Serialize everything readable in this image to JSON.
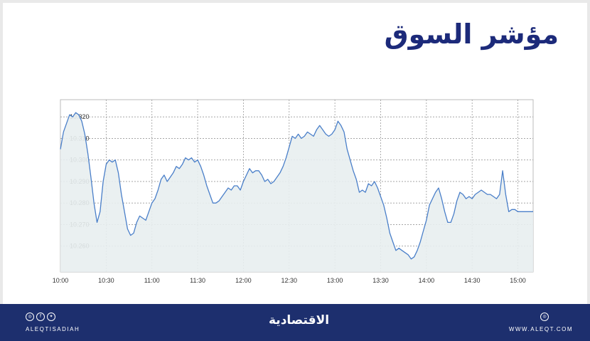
{
  "header": {
    "title": "مؤشر السوق"
  },
  "chart_data": {
    "type": "area",
    "title": "مؤشر السوق",
    "xlabel": "",
    "ylabel": "",
    "x_ticks": [
      "10:00",
      "10:30",
      "11:00",
      "11:30",
      "12:00",
      "12:30",
      "13:00",
      "13:30",
      "14:00",
      "14:30",
      "15:00"
    ],
    "y_ticks": [
      "10.260",
      "10.270",
      "10.280",
      "10.290",
      "10.300",
      "10.310",
      "10.320"
    ],
    "xlim": [
      "10:00",
      "15:10"
    ],
    "ylim": [
      10.248,
      10.328
    ],
    "grid": true,
    "line_color": "#4a7fc9",
    "fill_color": "#e8eef0",
    "series": [
      {
        "x": [
          "10:00",
          "10:02",
          "10:04",
          "10:06",
          "10:08",
          "10:10",
          "10:12",
          "10:14",
          "10:16",
          "10:18",
          "10:20",
          "10:22",
          "10:24",
          "10:26",
          "10:28",
          "10:30",
          "10:32",
          "10:34",
          "10:36",
          "10:38",
          "10:40",
          "10:42",
          "10:44",
          "10:46",
          "10:48",
          "10:50",
          "10:52",
          "10:54",
          "10:56",
          "10:58",
          "11:00",
          "11:02",
          "11:04",
          "11:06",
          "11:08",
          "11:10",
          "11:12",
          "11:14",
          "11:16",
          "11:18",
          "11:20",
          "11:22",
          "11:24",
          "11:26",
          "11:28",
          "11:30",
          "11:32",
          "11:34",
          "11:36",
          "11:38",
          "11:40",
          "11:42",
          "11:44",
          "11:46",
          "11:48",
          "11:50",
          "11:52",
          "11:54",
          "11:56",
          "11:58",
          "12:00",
          "12:02",
          "12:04",
          "12:06",
          "12:08",
          "12:10",
          "12:12",
          "12:14",
          "12:16",
          "12:18",
          "12:20",
          "12:22",
          "12:24",
          "12:26",
          "12:28",
          "12:30",
          "12:32",
          "12:34",
          "12:36",
          "12:38",
          "12:40",
          "12:42",
          "12:44",
          "12:46",
          "12:48",
          "12:50",
          "12:52",
          "12:54",
          "12:56",
          "12:58",
          "13:00",
          "13:02",
          "13:04",
          "13:06",
          "13:08",
          "13:10",
          "13:12",
          "13:14",
          "13:16",
          "13:18",
          "13:20",
          "13:22",
          "13:24",
          "13:26",
          "13:28",
          "13:30",
          "13:32",
          "13:34",
          "13:36",
          "13:38",
          "13:40",
          "13:42",
          "13:44",
          "13:46",
          "13:48",
          "13:50",
          "13:52",
          "13:54",
          "13:56",
          "13:58",
          "14:00",
          "14:02",
          "14:04",
          "14:06",
          "14:08",
          "14:10",
          "14:12",
          "14:14",
          "14:16",
          "14:18",
          "14:20",
          "14:22",
          "14:24",
          "14:26",
          "14:28",
          "14:30",
          "14:32",
          "14:34",
          "14:36",
          "14:38",
          "14:40",
          "14:42",
          "14:44",
          "14:46",
          "14:48",
          "14:50",
          "14:52",
          "14:54",
          "14:56",
          "14:58",
          "15:00",
          "15:02",
          "15:04",
          "15:06",
          "15:08",
          "15:10"
        ],
        "values": [
          10.305,
          10.313,
          10.317,
          10.321,
          10.32,
          10.322,
          10.321,
          10.318,
          10.312,
          10.303,
          10.292,
          10.28,
          10.271,
          10.276,
          10.29,
          10.298,
          10.3,
          10.299,
          10.3,
          10.294,
          10.284,
          10.276,
          10.268,
          10.265,
          10.266,
          10.271,
          10.274,
          10.273,
          10.272,
          10.276,
          10.28,
          10.282,
          10.286,
          10.291,
          10.293,
          10.29,
          10.292,
          10.294,
          10.297,
          10.296,
          10.298,
          10.301,
          10.3,
          10.301,
          10.299,
          10.3,
          10.297,
          10.293,
          10.288,
          10.284,
          10.28,
          10.28,
          10.281,
          10.283,
          10.285,
          10.287,
          10.286,
          10.288,
          10.288,
          10.286,
          10.29,
          10.293,
          10.296,
          10.294,
          10.295,
          10.295,
          10.293,
          10.29,
          10.291,
          10.289,
          10.29,
          10.292,
          10.294,
          10.297,
          10.301,
          10.306,
          10.311,
          10.31,
          10.312,
          10.31,
          10.311,
          10.313,
          10.312,
          10.311,
          10.314,
          10.316,
          10.314,
          10.312,
          10.311,
          10.312,
          10.314,
          10.318,
          10.316,
          10.313,
          10.305,
          10.3,
          10.295,
          10.291,
          10.285,
          10.286,
          10.285,
          10.289,
          10.288,
          10.29,
          10.287,
          10.283,
          10.279,
          10.273,
          10.266,
          10.262,
          10.258,
          10.259,
          10.258,
          10.257,
          10.256,
          10.254,
          10.255,
          10.258,
          10.262,
          10.267,
          10.272,
          10.279,
          10.282,
          10.285,
          10.287,
          10.282,
          10.276,
          10.271,
          10.271,
          10.275,
          10.281,
          10.285,
          10.284,
          10.282,
          10.283,
          10.282,
          10.284,
          10.285,
          10.286,
          10.285,
          10.284,
          10.284,
          10.283,
          10.282,
          10.284,
          10.295,
          10.284,
          10.276,
          10.277,
          10.277,
          10.276,
          10.276,
          10.276,
          10.276,
          10.276,
          10.276
        ]
      }
    ]
  },
  "footer": {
    "social_icons": [
      "instagram-icon",
      "facebook-icon",
      "twitter-icon"
    ],
    "handle": "ALEQTISADIAH",
    "logo": "الاقتصادية",
    "website": "WWW.ALEQT.COM"
  }
}
